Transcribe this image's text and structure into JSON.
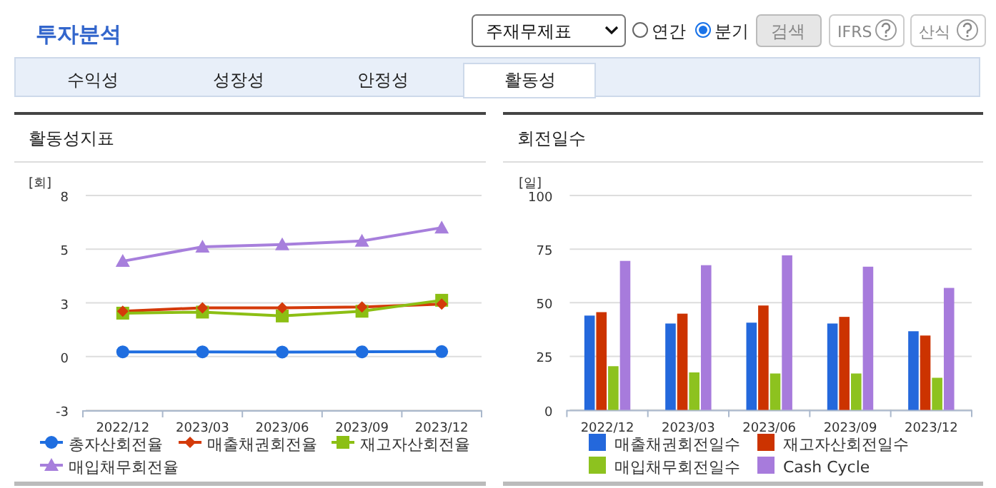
{
  "chart_data": [
    {
      "type": "other",
      "title": "투자분석",
      "annotations": [
        "주재무제표",
        "연간",
        "분기",
        "검색",
        "IFRS",
        "산식",
        "수익성",
        "성장성",
        "안정성",
        "활동성"
      ]
    },
    {
      "type": "line",
      "title": "활동성지표",
      "ylabel": "[회]",
      "categories": [
        "2022/12",
        "2023/03",
        "2023/06",
        "2023/09",
        "2023/12"
      ],
      "ylim": [
        -2.5,
        7.5
      ],
      "yticks": [
        {
          "value": -2.5,
          "label": "-3"
        },
        {
          "value": 0,
          "label": "0"
        },
        {
          "value": 2.5,
          "label": "3"
        },
        {
          "value": 5,
          "label": "5"
        },
        {
          "value": 7.5,
          "label": "8"
        }
      ],
      "grid": "y",
      "legend": "bottom",
      "series": [
        {
          "name": "총자산회전율",
          "color": "#1f6ee0",
          "marker": "circle",
          "values": [
            0.22,
            0.22,
            0.21,
            0.22,
            0.23
          ]
        },
        {
          "name": "매출채권회전율",
          "color": "#d43a0a",
          "marker": "diamond",
          "values": [
            2.11,
            2.27,
            2.27,
            2.31,
            2.44
          ]
        },
        {
          "name": "재고자산회전율",
          "color": "#8cbf14",
          "marker": "square",
          "values": [
            2.02,
            2.07,
            1.89,
            2.11,
            2.62
          ]
        },
        {
          "name": "매입채무회전율",
          "color": "#a77fdc",
          "marker": "triangle",
          "values": [
            4.44,
            5.11,
            5.22,
            5.38,
            6.0
          ]
        }
      ]
    },
    {
      "type": "bar",
      "title": "회전일수",
      "ylabel": "[일]",
      "categories": [
        "2022/12",
        "2023/03",
        "2023/06",
        "2023/09",
        "2023/12"
      ],
      "ylim": [
        0,
        100
      ],
      "yticks": [
        0,
        25,
        50,
        75,
        100
      ],
      "grid": "y",
      "legend": "bottom",
      "series": [
        {
          "name": "매출채권회전일수",
          "color": "#2468dc",
          "values": [
            44.0,
            40.3,
            40.7,
            40.3,
            36.7
          ]
        },
        {
          "name": "재고자산회전일수",
          "color": "#cc3300",
          "values": [
            45.6,
            44.9,
            48.7,
            43.4,
            34.7
          ]
        },
        {
          "name": "매입채무회전일수",
          "color": "#8dc21f",
          "values": [
            20.4,
            17.5,
            17.0,
            17.0,
            15.0
          ]
        },
        {
          "name": "Cash Cycle",
          "color": "#a77bdc",
          "values": [
            69.5,
            67.5,
            72.1,
            66.8,
            56.9
          ]
        }
      ]
    }
  ]
}
